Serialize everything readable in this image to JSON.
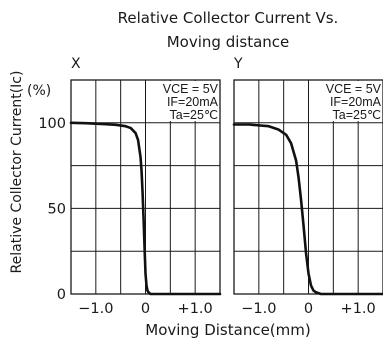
{
  "chart_data": [
    {
      "type": "line",
      "panel_label": "X",
      "title_line1": "Relative Collector Current Vs.",
      "title_line2": "Moving distance",
      "xlabel": "Moving Distance(mm)",
      "ylabel": "Relative Collector Current(Ic)",
      "yunit": "(%)",
      "xlim": [
        -1.5,
        1.5
      ],
      "ylim": [
        0,
        125
      ],
      "xticks": [
        -1.0,
        0,
        1.0
      ],
      "xtick_labels": [
        "−1.0",
        "0",
        "+1.0"
      ],
      "yticks": [
        0,
        50,
        100
      ],
      "ytick_labels": [
        "0",
        "50",
        "100"
      ],
      "grid": true,
      "conditions": [
        "VCE = 5V",
        "IF=20mA",
        "Ta=25℃"
      ],
      "series": [
        {
          "x": [
            -1.5,
            -1.2,
            -1.0,
            -0.8,
            -0.6,
            -0.4,
            -0.3,
            -0.2,
            -0.15,
            -0.1,
            -0.08,
            -0.06,
            -0.04,
            -0.02,
            0.0,
            0.02,
            0.04,
            0.06,
            0.08,
            0.1,
            0.15
          ],
          "y": [
            100,
            99.8,
            99.5,
            99.2,
            98.8,
            98,
            97,
            94,
            90,
            80,
            72,
            60,
            45,
            28,
            12,
            5,
            2,
            1,
            0.5,
            0,
            0
          ]
        }
      ]
    },
    {
      "type": "line",
      "panel_label": "Y",
      "xlim": [
        -1.5,
        1.5
      ],
      "ylim": [
        0,
        125
      ],
      "xticks": [
        -1.0,
        0,
        1.0
      ],
      "xtick_labels": [
        "−1.0",
        "0",
        "+1.0"
      ],
      "grid": true,
      "conditions": [
        "VCE = 5V",
        "IF=20mA",
        "Ta=25℃"
      ],
      "series": [
        {
          "x": [
            -1.5,
            -1.2,
            -1.0,
            -0.8,
            -0.6,
            -0.45,
            -0.35,
            -0.25,
            -0.2,
            -0.15,
            -0.1,
            -0.05,
            0.0,
            0.05,
            0.1,
            0.15,
            0.2,
            0.25
          ],
          "y": [
            99,
            99,
            98.5,
            98,
            96,
            93,
            88,
            78,
            68,
            55,
            40,
            24,
            12,
            5,
            2,
            1,
            0.5,
            0
          ]
        }
      ]
    }
  ]
}
